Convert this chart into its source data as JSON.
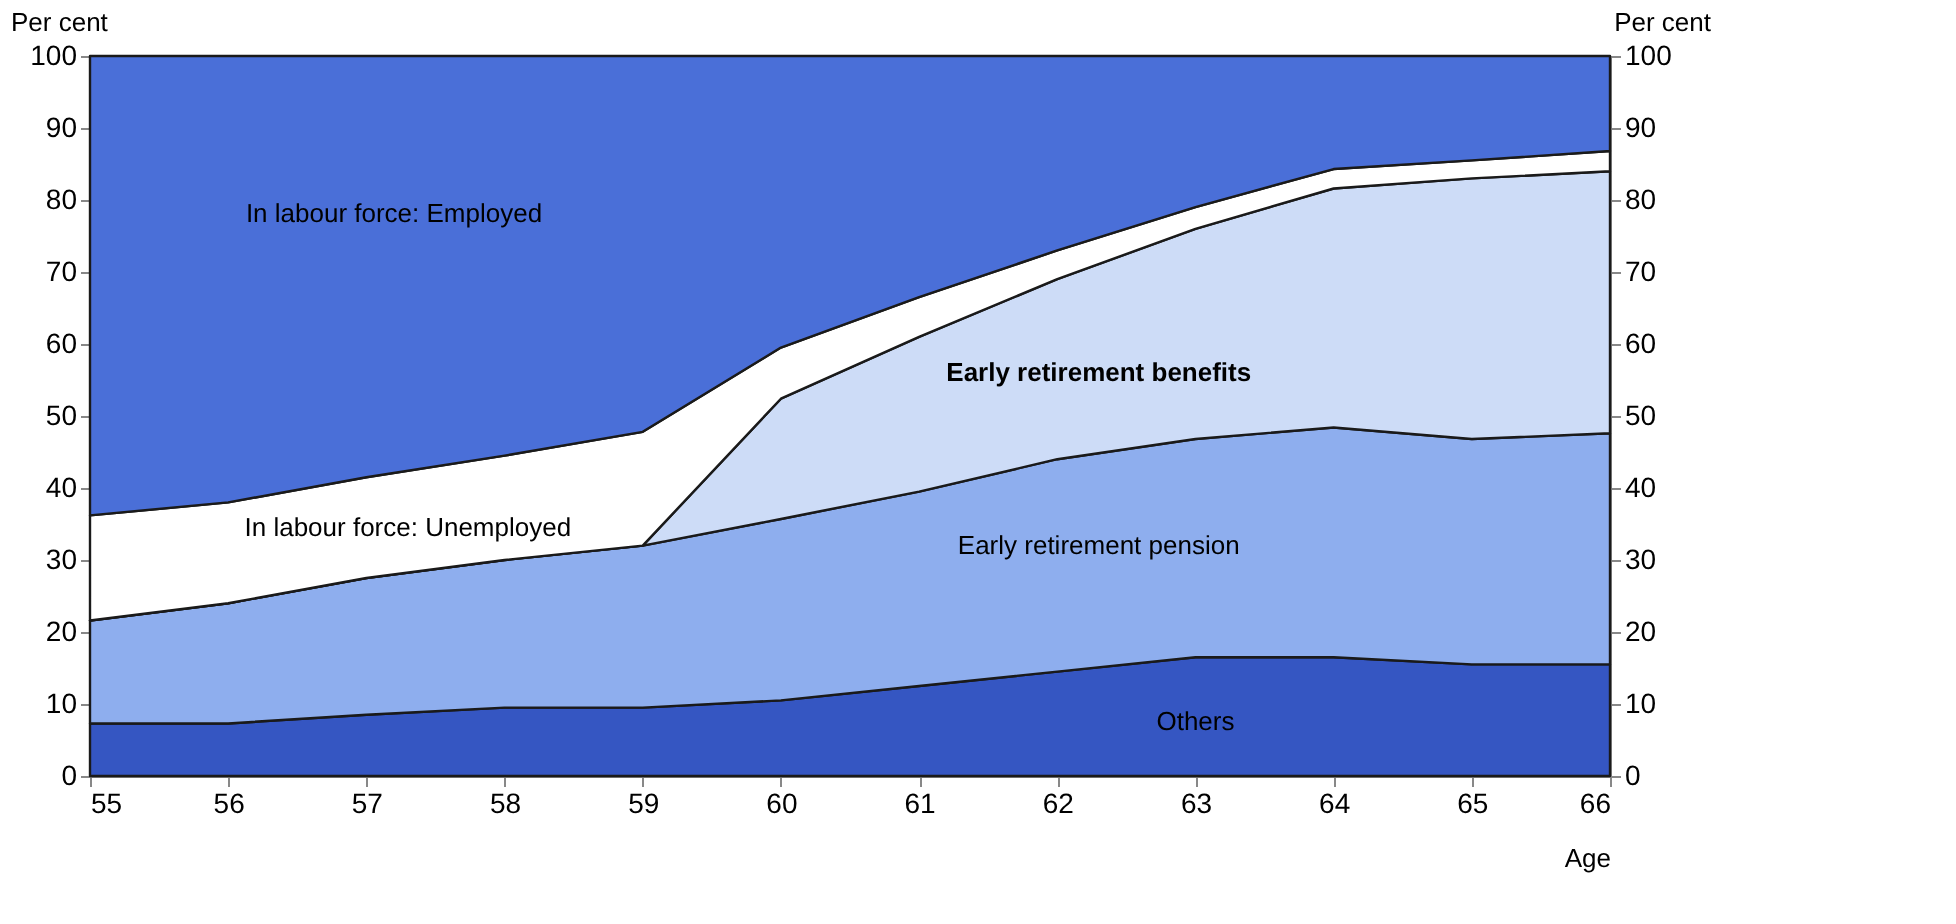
{
  "chart_data": {
    "type": "area",
    "stacked": true,
    "ylabel": "Per cent",
    "y2label": "Per cent",
    "xlabel": "Age",
    "x": [
      55,
      56,
      57,
      58,
      59,
      60,
      61,
      62,
      63,
      64,
      65,
      66
    ],
    "xlim": [
      55,
      66
    ],
    "xticks": [
      55,
      56,
      57,
      58,
      59,
      60,
      61,
      62,
      63,
      64,
      65,
      66
    ],
    "ylim": [
      0,
      100
    ],
    "yticks": [
      0,
      10,
      20,
      30,
      40,
      50,
      60,
      70,
      80,
      90,
      100
    ],
    "y2lim": [
      0,
      100
    ],
    "y2ticks": [
      0,
      10,
      20,
      30,
      40,
      50,
      60,
      70,
      80,
      90,
      100
    ],
    "legend": false,
    "series": [
      {
        "name": "Others",
        "color": "#3556c2",
        "values": [
          7.3,
          7.3,
          8.5,
          9.5,
          9.5,
          10.5,
          12.5,
          14.5,
          16.5,
          16.5,
          15.5,
          15.5
        ]
      },
      {
        "name": "Early retirement pension",
        "color": "#8eaeee",
        "values": [
          14.3,
          16.7,
          19,
          20.5,
          22.5,
          25.2,
          27,
          29.5,
          30.3,
          31.9,
          31.3,
          32.1
        ]
      },
      {
        "name": "Early retirement benefits",
        "color": "#cddcf7",
        "values": [
          0,
          0,
          0,
          0,
          0,
          16.7,
          21.5,
          25,
          29.2,
          33.2,
          36.2,
          36.4
        ]
      },
      {
        "name": "In labour force: Unemployed",
        "color": "#ffffff",
        "values": [
          14.6,
          14,
          14,
          14.5,
          15.8,
          7.1,
          5.5,
          4,
          3,
          2.7,
          2.5,
          2.8
        ]
      },
      {
        "name": "In labour force: Employed",
        "color": "#4a6fd8",
        "values": [
          63.8,
          62,
          58.5,
          55.5,
          52.2,
          40.5,
          33.5,
          27,
          21,
          15.7,
          14.5,
          13.2
        ]
      }
    ]
  }
}
